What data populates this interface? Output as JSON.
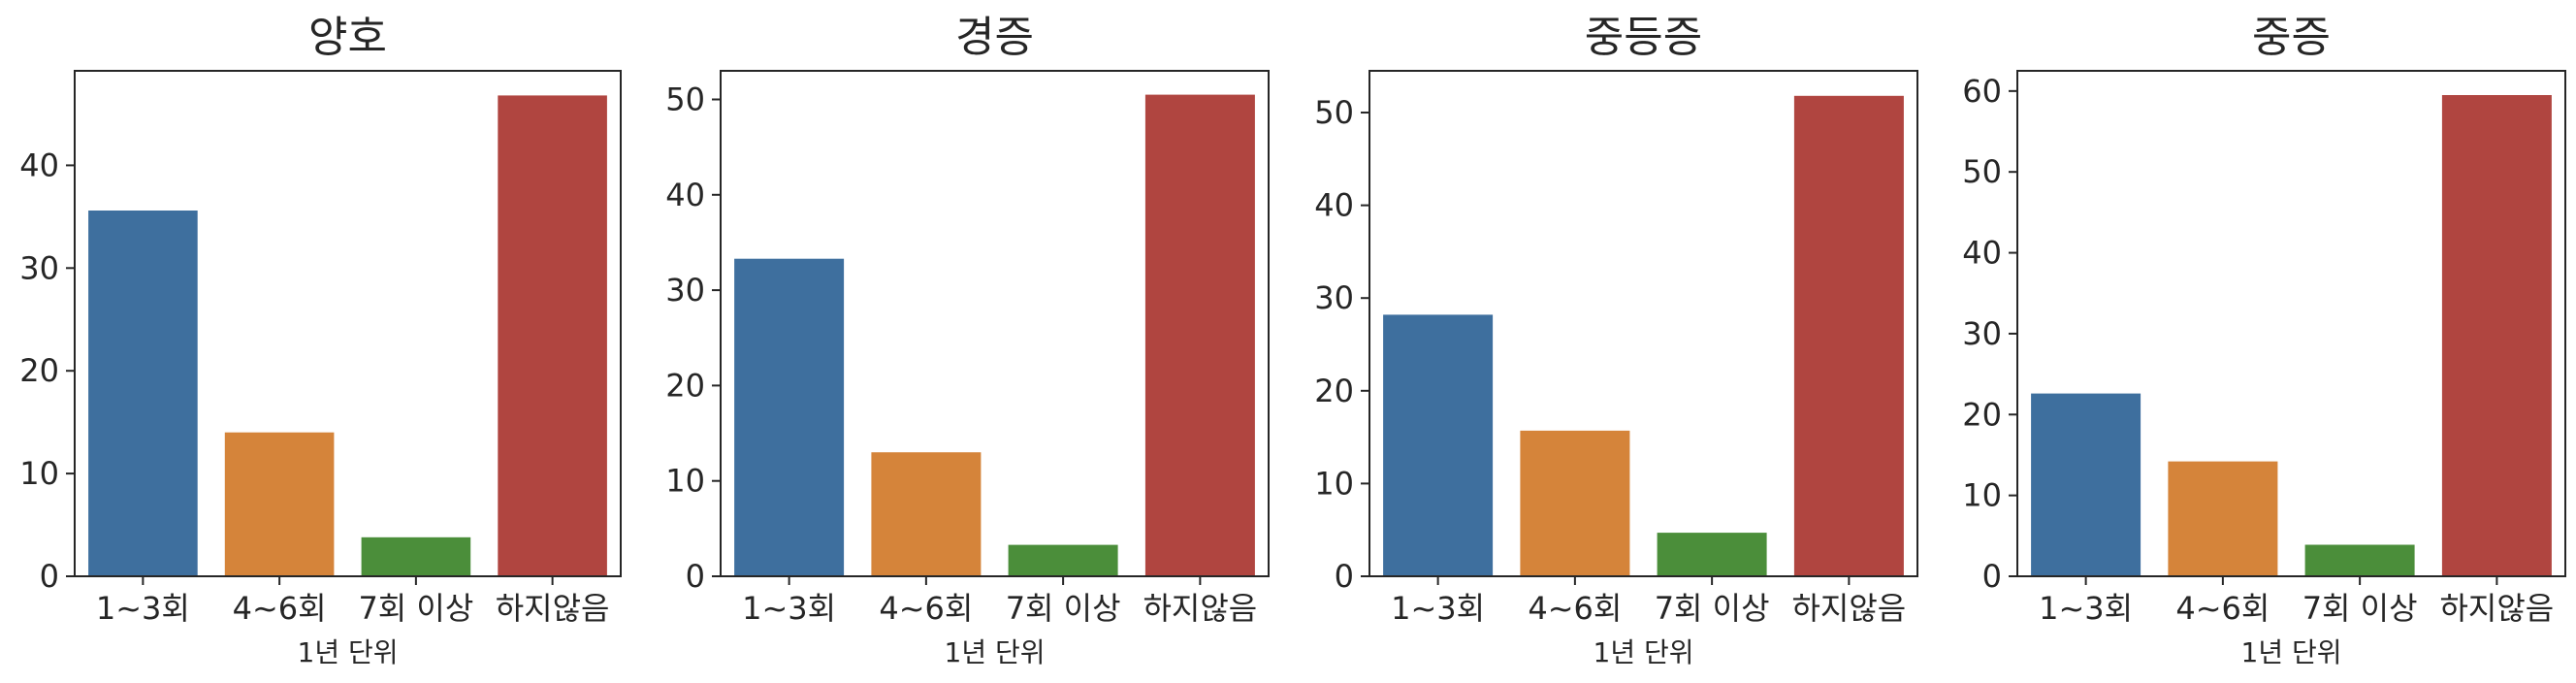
{
  "chart_data": [
    {
      "type": "bar",
      "title": "양호",
      "xlabel": "1년 단위",
      "ylabel": "",
      "categories": [
        "1~3회",
        "4~6회",
        "7회 이상",
        "하지않음"
      ],
      "values": [
        35.6,
        14.0,
        3.8,
        46.8
      ],
      "ylim": [
        0,
        49.2
      ],
      "yticks": [
        0,
        10,
        20,
        30,
        40
      ]
    },
    {
      "type": "bar",
      "title": "경증",
      "xlabel": "1년 단위",
      "ylabel": "",
      "categories": [
        "1~3회",
        "4~6회",
        "7회 이상",
        "하지않음"
      ],
      "values": [
        33.3,
        13.0,
        3.3,
        50.5
      ],
      "ylim": [
        0,
        53.0
      ],
      "yticks": [
        0,
        10,
        20,
        30,
        40,
        50
      ]
    },
    {
      "type": "bar",
      "title": "중등증",
      "xlabel": "1년 단위",
      "ylabel": "",
      "categories": [
        "1~3회",
        "4~6회",
        "7회 이상",
        "하지않음"
      ],
      "values": [
        28.2,
        15.7,
        4.7,
        51.8
      ],
      "ylim": [
        0,
        54.5
      ],
      "yticks": [
        0,
        10,
        20,
        30,
        40,
        50
      ]
    },
    {
      "type": "bar",
      "title": "중증",
      "xlabel": "1년 단위",
      "ylabel": "",
      "categories": [
        "1~3회",
        "4~6회",
        "7회 이상",
        "하지않음"
      ],
      "values": [
        22.6,
        14.2,
        3.9,
        59.5
      ],
      "ylim": [
        0,
        62.5
      ],
      "yticks": [
        0,
        10,
        20,
        30,
        40,
        50,
        60
      ]
    }
  ],
  "colors": {
    "bars": [
      "#3e6f9e",
      "#d5843a",
      "#4b8e3a",
      "#b04540"
    ],
    "axis": "#262626",
    "text": "#262626",
    "background": "#ffffff"
  }
}
